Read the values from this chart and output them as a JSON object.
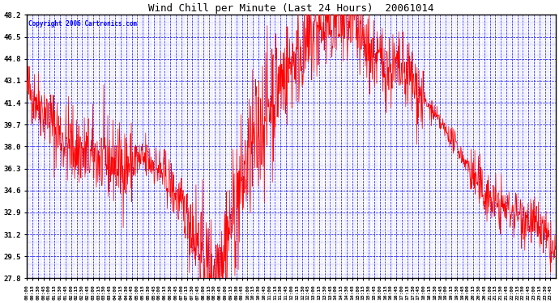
{
  "title": "Wind Chill per Minute (Last 24 Hours)  20061014",
  "copyright": "Copyright 2006 Cartronics.com",
  "yticks": [
    27.8,
    29.5,
    31.2,
    32.9,
    34.6,
    36.3,
    38.0,
    39.7,
    41.4,
    43.1,
    44.8,
    46.5,
    48.2
  ],
  "ymin": 27.8,
  "ymax": 48.2,
  "bg_color": "#FFFFFF",
  "plot_bg_color": "#FFFFFF",
  "line_color": "#FF0000",
  "grid_color": "#0000FF",
  "title_color": "#000000",
  "axis_color": "#000000",
  "tick_label_color": "#0000FF",
  "copyright_color": "#0000FF",
  "figsize": [
    6.9,
    3.75
  ],
  "dpi": 100
}
